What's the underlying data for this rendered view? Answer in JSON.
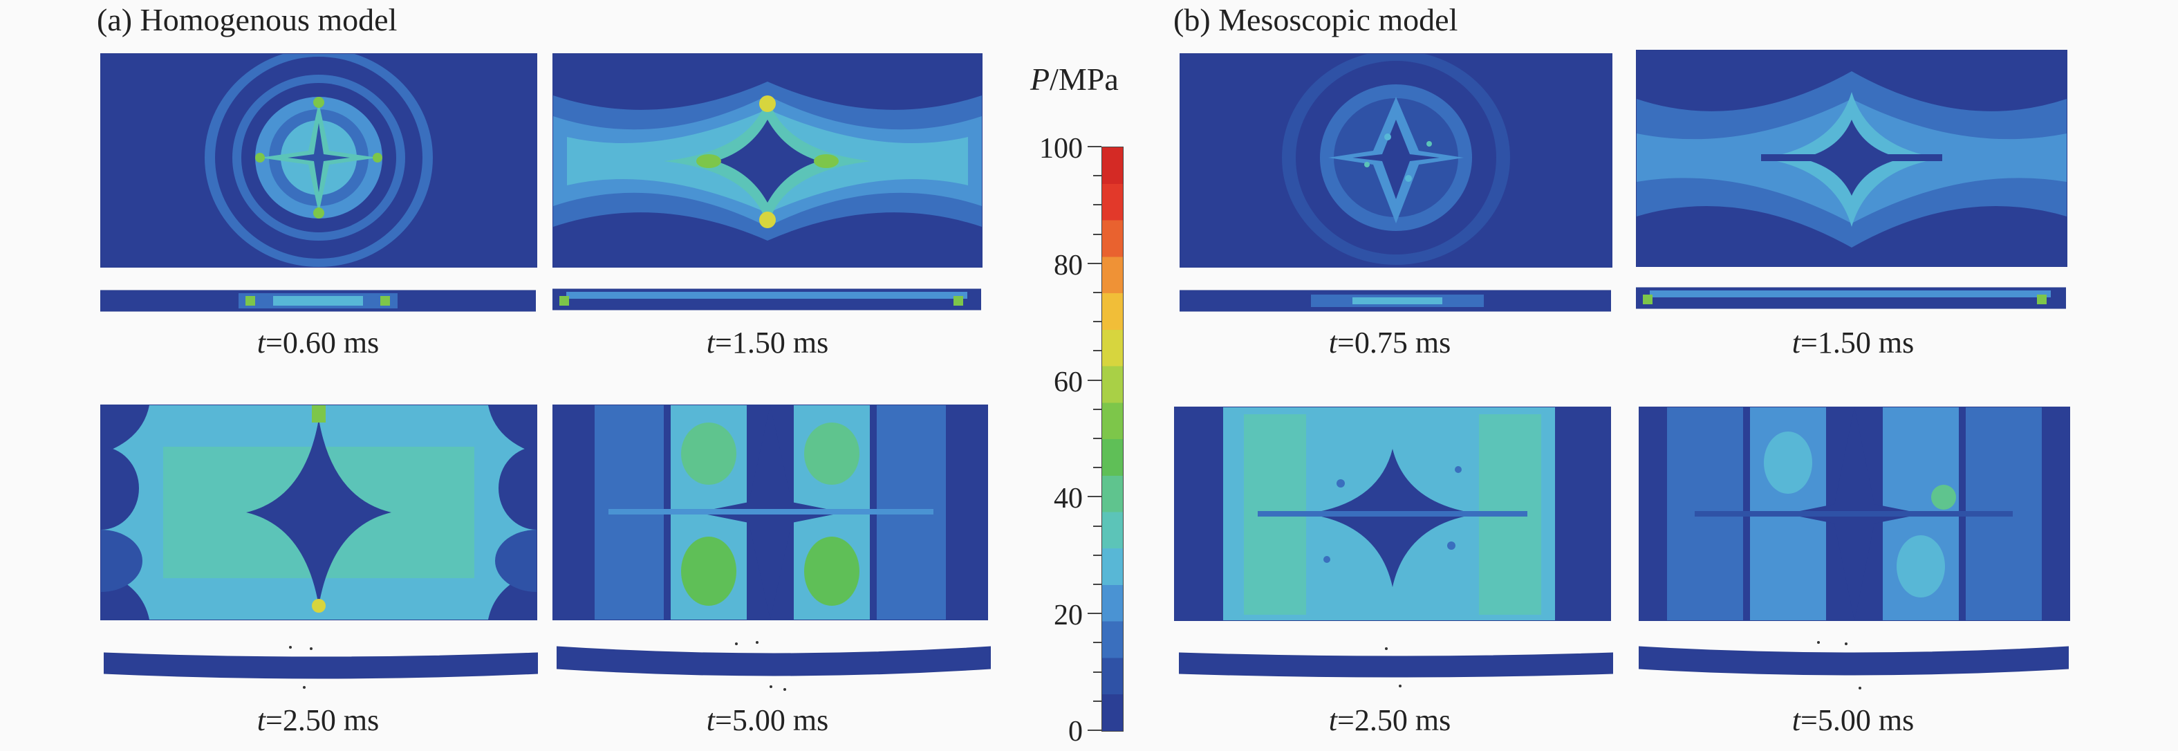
{
  "panels": {
    "homogenous": {
      "title": "(a) Homogenous model",
      "frames": [
        {
          "t_var": "t",
          "t_value": "=0.60 ms"
        },
        {
          "t_var": "t",
          "t_value": "=1.50 ms"
        },
        {
          "t_var": "t",
          "t_value": "=2.50 ms"
        },
        {
          "t_var": "t",
          "t_value": "=5.00 ms"
        }
      ]
    },
    "mesoscopic": {
      "title": "(b) Mesoscopic model",
      "frames": [
        {
          "t_var": "t",
          "t_value": "=0.75 ms"
        },
        {
          "t_var": "t",
          "t_value": "=1.50 ms"
        },
        {
          "t_var": "t",
          "t_value": "=2.50 ms"
        },
        {
          "t_var": "t",
          "t_value": "=5.00 ms"
        }
      ]
    }
  },
  "colorbar": {
    "title_var": "P",
    "title_unit": "/MPa",
    "labels": [
      "100",
      "80",
      "60",
      "40",
      "20",
      "0"
    ],
    "min": 0,
    "max": 100,
    "colors": [
      "#2b3f95",
      "#2f52a6",
      "#3a6fbe",
      "#4a93d3",
      "#58b7d6",
      "#5cc4b8",
      "#5fc48e",
      "#5fbf57",
      "#7dc64a",
      "#a9d046",
      "#d7d53e",
      "#f1be38",
      "#ef9236",
      "#e9622f",
      "#e2392a",
      "#d42a25"
    ]
  },
  "colors": {
    "background_pressure": "#2b3f95",
    "low": "#3a6fbe",
    "mid": "#5cc4b8",
    "high": "#5fbf57",
    "peak": "#d7d53e"
  }
}
